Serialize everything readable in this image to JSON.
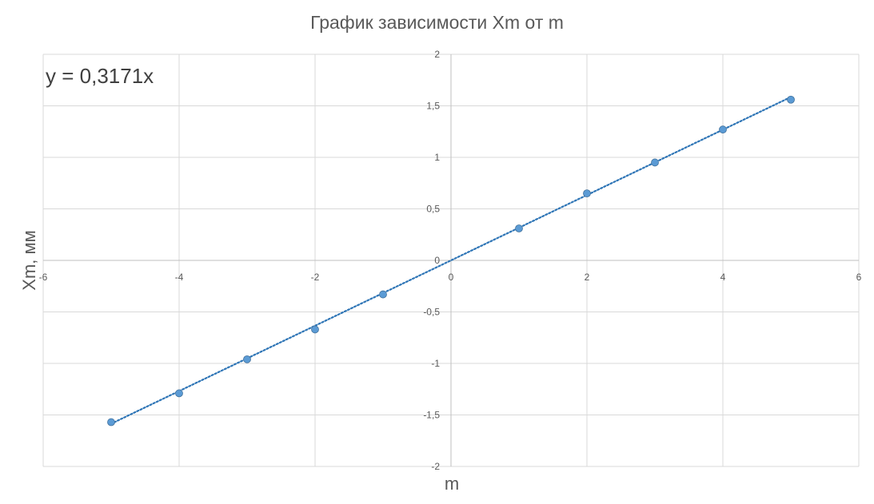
{
  "chart_data": {
    "type": "scatter",
    "title": "График зависимости Xm от m",
    "xlabel": "m",
    "ylabel": "Xm, мм",
    "xlim": [
      -6,
      6
    ],
    "ylim": [
      -2,
      2
    ],
    "x_ticks": [
      -6,
      -4,
      -2,
      0,
      2,
      4,
      6
    ],
    "y_ticks": [
      -2,
      -1.5,
      -1,
      -0.5,
      0,
      0.5,
      1,
      1.5,
      2
    ],
    "x_tick_labels": [
      "-6",
      "-4",
      "-2",
      "0",
      "2",
      "4",
      "6"
    ],
    "y_tick_labels": [
      "-2",
      "-1,5",
      "-1",
      "-0,5",
      "0",
      "0,5",
      "1",
      "1,5",
      "2"
    ],
    "grid": true,
    "series": [
      {
        "x": [
          -5,
          -4,
          -3,
          -2,
          -1,
          1,
          2,
          3,
          4,
          5
        ],
        "y": [
          -1.57,
          -1.29,
          -0.96,
          -0.67,
          -0.33,
          0.31,
          0.65,
          0.95,
          1.27,
          1.56
        ],
        "color": "#5b9bd5"
      }
    ],
    "trendline": {
      "type": "linear",
      "slope": 0.3171,
      "intercept": 0,
      "x_range": [
        -5,
        5
      ],
      "equation": "y = 0,3171x",
      "color": "#2e75b6",
      "style": "dotted"
    }
  }
}
